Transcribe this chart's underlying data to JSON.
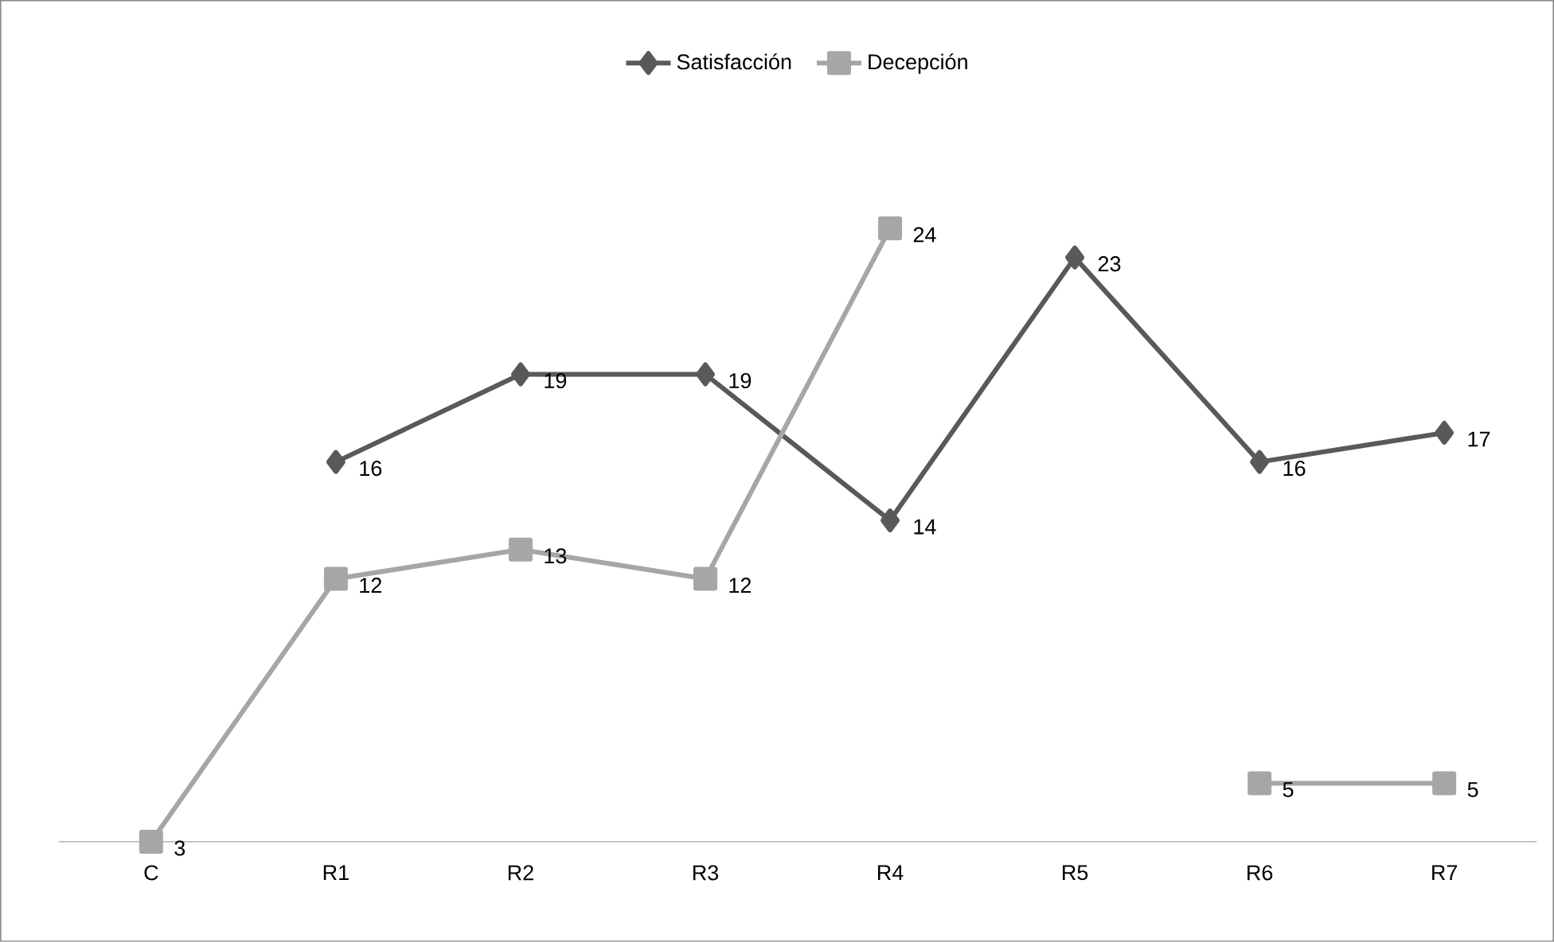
{
  "chart_data": {
    "type": "line",
    "categories": [
      "C",
      "R1",
      "R2",
      "R3",
      "R4",
      "R5",
      "R6",
      "R7"
    ],
    "series": [
      {
        "name": "Satisfacción",
        "color": "#595959",
        "marker": "diamond",
        "values": [
          null,
          16,
          19,
          19,
          14,
          23,
          16,
          17
        ]
      },
      {
        "name": "Decepción",
        "color": "#a6a6a6",
        "marker": "square",
        "values": [
          3,
          12,
          13,
          12,
          24,
          null,
          5,
          5
        ]
      }
    ],
    "tick_labels": "x",
    "data_labels": true,
    "legend": "top",
    "grid": false,
    "line_style": "solid"
  }
}
